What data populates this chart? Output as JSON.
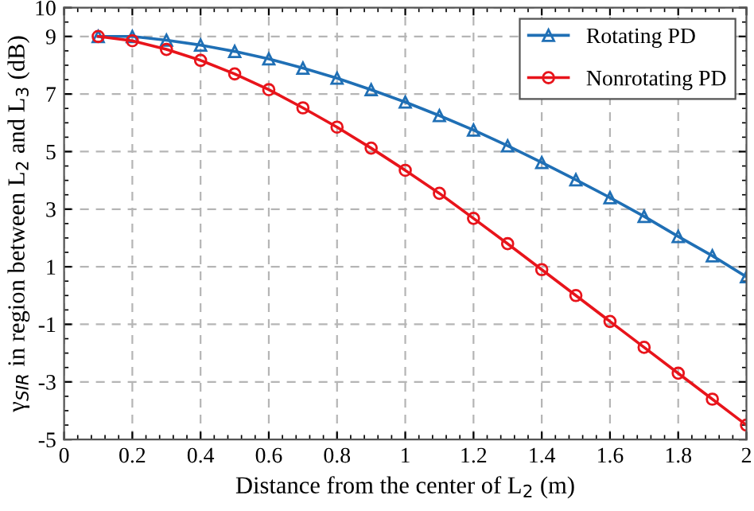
{
  "chart_data": {
    "type": "line",
    "xlabel": "Distance from the center of L$_{2}$ (m)",
    "ylabel": "γ$_{SIR}$ in region between L$_{2}$ and L$_{3}$ (dB)",
    "x": [
      0.1,
      0.2,
      0.3,
      0.4,
      0.5,
      0.6,
      0.7,
      0.8,
      0.9,
      1.0,
      1.1,
      1.2,
      1.3,
      1.4,
      1.5,
      1.6,
      1.7,
      1.8,
      1.9,
      2.0
    ],
    "series": [
      {
        "name": "Rotating PD",
        "color": "#1f6fb5",
        "marker": "triangle",
        "values": [
          9.0,
          9.0,
          8.87,
          8.7,
          8.48,
          8.22,
          7.9,
          7.55,
          7.15,
          6.72,
          6.25,
          5.75,
          5.2,
          4.62,
          4.02,
          3.4,
          2.75,
          2.05,
          1.38,
          0.65
        ]
      },
      {
        "name": "Nonrotating PD",
        "color": "#e8141b",
        "marker": "circle",
        "values": [
          9.0,
          8.85,
          8.55,
          8.17,
          7.7,
          7.15,
          6.52,
          5.85,
          5.12,
          4.35,
          3.55,
          2.68,
          1.8,
          0.9,
          0.0,
          -0.9,
          -1.8,
          -2.7,
          -3.6,
          -4.5
        ]
      }
    ],
    "xlim": [
      0,
      2
    ],
    "xticks": [
      0,
      0.2,
      0.4,
      0.6,
      0.8,
      1,
      1.2,
      1.4,
      1.6,
      1.8,
      2
    ],
    "ylim": [
      -5,
      10
    ],
    "yticks": [
      -5,
      -3,
      -1,
      1,
      3,
      5,
      7,
      9,
      10
    ],
    "grid": true,
    "legend": "top right",
    "line_style": "solid"
  }
}
